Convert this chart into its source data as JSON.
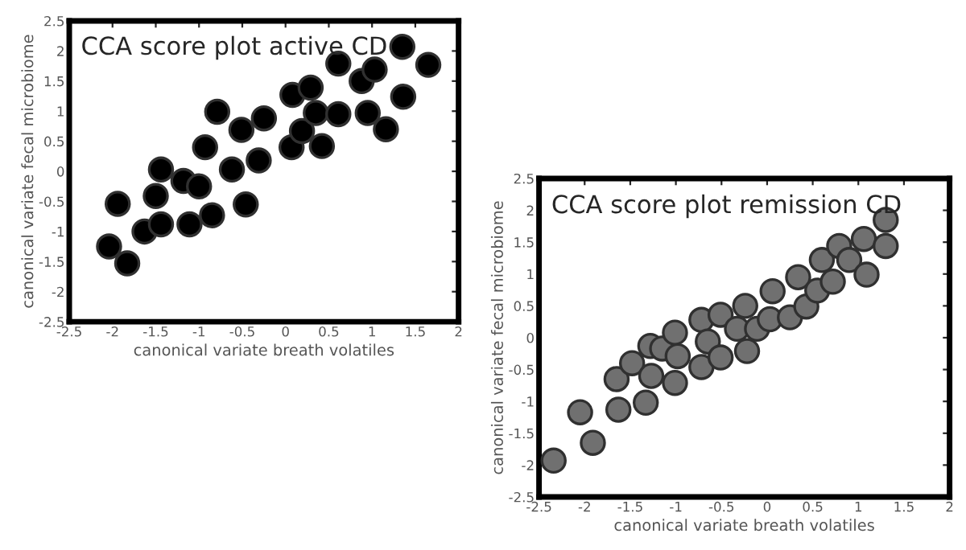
{
  "chart_data": [
    {
      "type": "scatter",
      "title": "CCA score plot active CD",
      "xlabel": "canonical variate breath volatiles",
      "ylabel": "canonical variate fecal microbiome",
      "xlim": [
        -2.5,
        2
      ],
      "ylim": [
        -2.5,
        2.5
      ],
      "xticks": [
        -2.5,
        -2,
        -1.5,
        -1,
        -0.5,
        0,
        0.5,
        1,
        1.5,
        2
      ],
      "yticks": [
        -2.5,
        -2,
        -1.5,
        -1,
        -0.5,
        0,
        0.5,
        1,
        1.5,
        2,
        2.5
      ],
      "marker": "circle",
      "series": [
        {
          "color": "#000000",
          "x": [
            -2.04,
            -1.94,
            -1.83,
            -1.63,
            -1.5,
            -1.44,
            -1.44,
            -1.18,
            -1.11,
            -1.0,
            -0.93,
            -0.85,
            -0.79,
            -0.62,
            -0.51,
            -0.46,
            -0.31,
            -0.25,
            0.07,
            0.08,
            0.19,
            0.29,
            0.35,
            0.42,
            0.61,
            0.61,
            0.88,
            0.95,
            1.03,
            1.16,
            1.35,
            1.65,
            1.36
          ],
          "values": [
            -1.25,
            -0.54,
            -1.53,
            -1.0,
            -0.41,
            0.03,
            -0.88,
            -0.16,
            -0.88,
            -0.25,
            0.4,
            -0.73,
            0.99,
            0.03,
            0.69,
            -0.55,
            0.18,
            0.88,
            0.4,
            1.27,
            0.67,
            1.39,
            0.97,
            0.42,
            1.79,
            0.95,
            1.5,
            0.97,
            1.69,
            0.7,
            2.07,
            1.77,
            1.24
          ]
        }
      ]
    },
    {
      "type": "scatter",
      "title": "CCA score plot remission CD",
      "xlabel": "canonical variate breath volatiles",
      "ylabel": "canonical variate fecal microbiome",
      "xlim": [
        -2.5,
        2
      ],
      "ylim": [
        -2.5,
        2.5
      ],
      "xticks": [
        -2.5,
        -2,
        -1.5,
        -1,
        -0.5,
        0,
        0.5,
        1,
        1.5,
        2
      ],
      "yticks": [
        -2.5,
        -2,
        -1.5,
        -1,
        -0.5,
        0,
        0.5,
        1,
        1.5,
        2,
        2.5
      ],
      "marker": "circle",
      "series": [
        {
          "color": "#707070",
          "x": [
            -2.34,
            -2.05,
            -1.91,
            -1.65,
            -1.63,
            -1.48,
            -1.33,
            -1.28,
            -1.27,
            -1.15,
            -1.01,
            -0.98,
            -1.01,
            -0.72,
            -0.72,
            -0.65,
            -0.51,
            -0.51,
            -0.33,
            -0.24,
            -0.22,
            -0.11,
            0.03,
            0.06,
            0.25,
            0.34,
            0.43,
            0.55,
            0.6,
            0.72,
            0.79,
            0.9,
            1.06,
            1.09,
            1.3,
            1.3
          ],
          "values": [
            -1.93,
            -1.17,
            -1.65,
            -0.65,
            -1.13,
            -0.4,
            -1.02,
            -0.13,
            -0.6,
            -0.17,
            0.08,
            -0.29,
            -0.71,
            0.28,
            -0.46,
            -0.06,
            0.36,
            -0.31,
            0.14,
            0.5,
            -0.21,
            0.14,
            0.29,
            0.73,
            0.32,
            0.95,
            0.49,
            0.74,
            1.22,
            0.88,
            1.44,
            1.22,
            1.55,
            0.99,
            1.85,
            1.44
          ]
        }
      ]
    }
  ]
}
